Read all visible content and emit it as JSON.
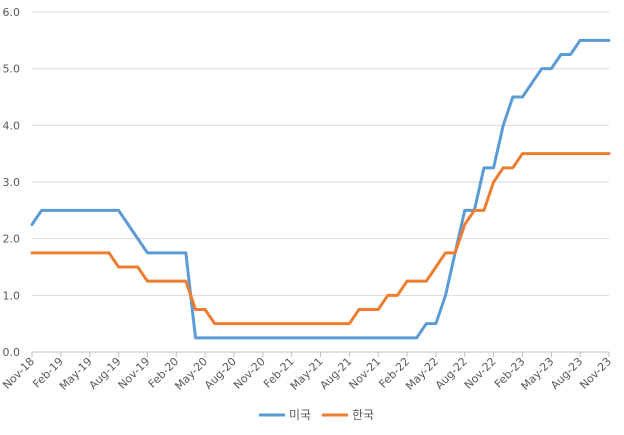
{
  "chart_data": {
    "type": "line",
    "title": "",
    "xlabel": "",
    "ylabel": "",
    "ylim": [
      0,
      6
    ],
    "yticks": [
      "0.0",
      "1.0",
      "2.0",
      "3.0",
      "4.0",
      "5.0",
      "6.0"
    ],
    "ytick_values": [
      0,
      1,
      2,
      3,
      4,
      5,
      6
    ],
    "xtick_labels": [
      "Nov-18",
      "Feb-19",
      "May-19",
      "Aug-19",
      "Nov-19",
      "Feb-20",
      "May-20",
      "Aug-20",
      "Nov-20",
      "Feb-21",
      "May-21",
      "Aug-21",
      "Nov-21",
      "Feb-22",
      "May-22",
      "Aug-22",
      "Nov-22",
      "Feb-23",
      "May-23",
      "Aug-23",
      "Nov-23"
    ],
    "x_start": "Nov-18",
    "x_end": "Nov-23",
    "grid": true,
    "legend_position": "bottom-center",
    "x": [
      "Nov-18",
      "Dec-18",
      "Jan-19",
      "Feb-19",
      "Mar-19",
      "Apr-19",
      "May-19",
      "Jun-19",
      "Jul-19",
      "Aug-19",
      "Sep-19",
      "Oct-19",
      "Nov-19",
      "Dec-19",
      "Jan-20",
      "Feb-20",
      "Mar-20",
      "Apr-20",
      "May-20",
      "Jun-20",
      "Jul-20",
      "Aug-20",
      "Sep-20",
      "Oct-20",
      "Nov-20",
      "Dec-20",
      "Jan-21",
      "Feb-21",
      "Mar-21",
      "Apr-21",
      "May-21",
      "Jun-21",
      "Jul-21",
      "Aug-21",
      "Sep-21",
      "Oct-21",
      "Nov-21",
      "Dec-21",
      "Jan-22",
      "Feb-22",
      "Mar-22",
      "Apr-22",
      "May-22",
      "Jun-22",
      "Jul-22",
      "Aug-22",
      "Sep-22",
      "Oct-22",
      "Nov-22",
      "Dec-22",
      "Jan-23",
      "Feb-23",
      "Mar-23",
      "Apr-23",
      "May-23",
      "Jun-23",
      "Jul-23",
      "Aug-23",
      "Sep-23",
      "Oct-23",
      "Nov-23"
    ],
    "series": [
      {
        "name": "미국",
        "color": "#5b9bd5",
        "values": [
          2.25,
          2.5,
          2.5,
          2.5,
          2.5,
          2.5,
          2.5,
          2.5,
          2.5,
          2.5,
          2.25,
          2.0,
          1.75,
          1.75,
          1.75,
          1.75,
          1.75,
          0.25,
          0.25,
          0.25,
          0.25,
          0.25,
          0.25,
          0.25,
          0.25,
          0.25,
          0.25,
          0.25,
          0.25,
          0.25,
          0.25,
          0.25,
          0.25,
          0.25,
          0.25,
          0.25,
          0.25,
          0.25,
          0.25,
          0.25,
          0.25,
          0.5,
          0.5,
          1.0,
          1.75,
          2.5,
          2.5,
          3.25,
          3.25,
          4.0,
          4.5,
          4.5,
          4.75,
          5.0,
          5.0,
          5.25,
          5.25,
          5.5,
          5.5,
          5.5,
          5.5
        ]
      },
      {
        "name": "한국",
        "color": "#ed7d31",
        "values": [
          1.75,
          1.75,
          1.75,
          1.75,
          1.75,
          1.75,
          1.75,
          1.75,
          1.75,
          1.5,
          1.5,
          1.5,
          1.25,
          1.25,
          1.25,
          1.25,
          1.25,
          0.75,
          0.75,
          0.5,
          0.5,
          0.5,
          0.5,
          0.5,
          0.5,
          0.5,
          0.5,
          0.5,
          0.5,
          0.5,
          0.5,
          0.5,
          0.5,
          0.5,
          0.75,
          0.75,
          0.75,
          1.0,
          1.0,
          1.25,
          1.25,
          1.25,
          1.5,
          1.75,
          1.75,
          2.25,
          2.5,
          2.5,
          3.0,
          3.25,
          3.25,
          3.5,
          3.5,
          3.5,
          3.5,
          3.5,
          3.5,
          3.5,
          3.5,
          3.5,
          3.5
        ]
      }
    ]
  }
}
